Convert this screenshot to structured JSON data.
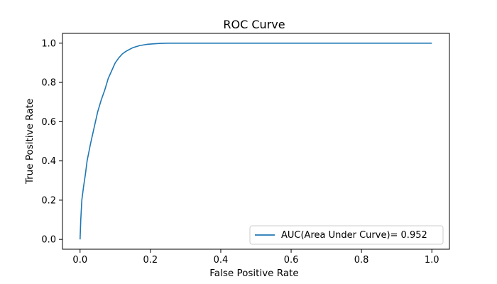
{
  "chart_data": {
    "type": "line",
    "title": "ROC Curve",
    "xlabel": "False Positive Rate",
    "ylabel": "True Positive Rate",
    "xlim": [
      -0.05,
      1.05
    ],
    "ylim": [
      -0.05,
      1.05
    ],
    "grid": false,
    "legend_position": "lower right",
    "x_ticks": [
      "0.0",
      "0.2",
      "0.4",
      "0.6",
      "0.8",
      "1.0"
    ],
    "y_ticks": [
      "0.0",
      "0.2",
      "0.4",
      "0.6",
      "0.8",
      "1.0"
    ],
    "series": [
      {
        "name": "AUC(Area Under Curve)= 0.952",
        "color": "#1f77b4",
        "x": [
          0.0,
          0.002,
          0.005,
          0.01,
          0.015,
          0.02,
          0.03,
          0.04,
          0.05,
          0.06,
          0.07,
          0.08,
          0.09,
          0.1,
          0.11,
          0.12,
          0.13,
          0.14,
          0.15,
          0.17,
          0.19,
          0.21,
          0.23,
          0.25,
          0.3,
          0.4,
          0.5,
          0.6,
          0.7,
          0.8,
          0.9,
          1.0
        ],
        "y": [
          0.0,
          0.1,
          0.2,
          0.27,
          0.33,
          0.4,
          0.49,
          0.57,
          0.65,
          0.71,
          0.76,
          0.82,
          0.86,
          0.9,
          0.925,
          0.945,
          0.958,
          0.968,
          0.977,
          0.988,
          0.994,
          0.997,
          0.999,
          1.0,
          1.0,
          1.0,
          1.0,
          1.0,
          1.0,
          1.0,
          1.0,
          1.0
        ]
      }
    ]
  }
}
